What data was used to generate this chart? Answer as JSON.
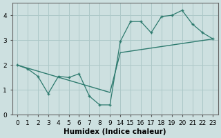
{
  "xlabel": "Humidex (Indice chaleur)",
  "bg_color": "#cde0e0",
  "line_color": "#2d7a6e",
  "grid_color": "#adc8c8",
  "line1_indices": [
    0,
    1,
    2,
    3,
    4,
    5,
    6,
    7,
    8,
    9,
    10,
    11,
    12,
    13,
    14,
    15,
    16,
    17,
    18,
    19
  ],
  "line1_y": [
    2.0,
    1.85,
    1.55,
    0.85,
    1.55,
    1.5,
    1.65,
    0.75,
    0.4,
    0.4,
    2.95,
    3.75,
    3.75,
    3.3,
    3.95,
    4.0,
    4.2,
    3.65,
    3.3,
    3.05
  ],
  "line2_indices": [
    0,
    9,
    10,
    19
  ],
  "line2_y": [
    2.0,
    0.9,
    2.5,
    3.05
  ],
  "xtick_indices": [
    0,
    1,
    2,
    3,
    4,
    5,
    6,
    7,
    8,
    9,
    10,
    11,
    12,
    13,
    14,
    15,
    16,
    17,
    18,
    19
  ],
  "xtick_labels": [
    "0",
    "1",
    "2",
    "3",
    "4",
    "5",
    "6",
    "7",
    "8",
    "9",
    "14",
    "15",
    "16",
    "17",
    "18",
    "19",
    "20",
    "21",
    "22",
    "23"
  ],
  "yticks": [
    0,
    1,
    2,
    3,
    4
  ],
  "xlim": [
    -0.5,
    19.5
  ],
  "ylim": [
    0,
    4.5
  ]
}
